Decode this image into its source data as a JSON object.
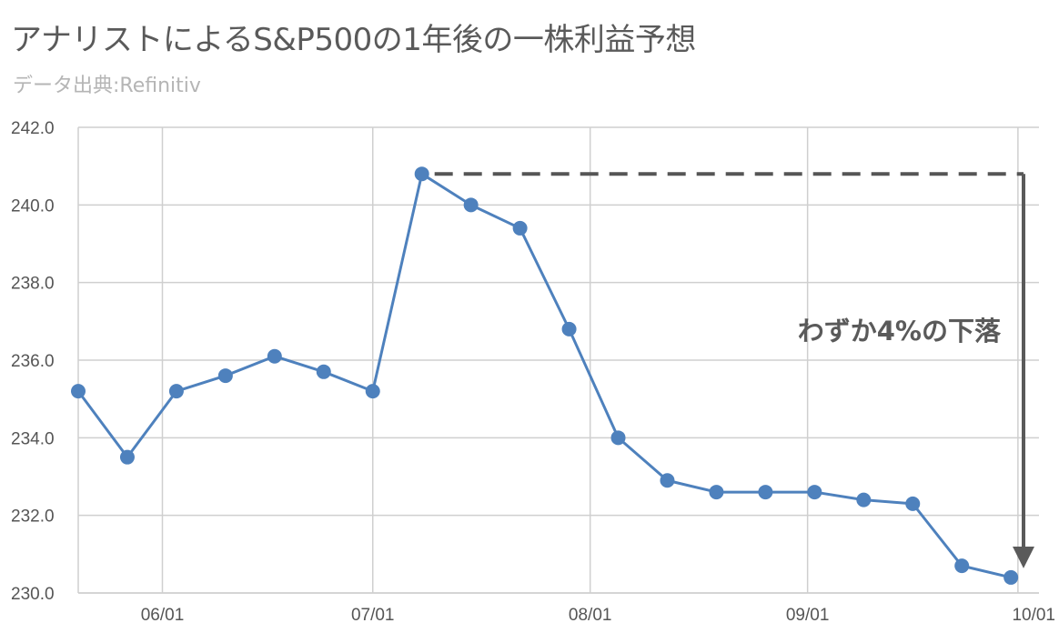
{
  "header": {
    "title": "アナリストによるS&P500の1年後の一株利益予想",
    "subtitle": "データ出典:Refinitiv"
  },
  "chart_data": {
    "type": "line",
    "title": "アナリストによるS&P500の1年後の一株利益予想",
    "subtitle": "データ出典:Refinitiv",
    "xlabel": "",
    "ylabel": "",
    "ylim": [
      230.0,
      242.0
    ],
    "yticks": [
      "230.0",
      "232.0",
      "234.0",
      "236.0",
      "238.0",
      "240.0",
      "242.0"
    ],
    "xticks": [
      {
        "label": "06/01",
        "day": 1
      },
      {
        "label": "07/01",
        "day": 31
      },
      {
        "label": "08/01",
        "day": 62
      },
      {
        "label": "09/01",
        "day": 93
      },
      {
        "label": "10/01",
        "day": 123
      }
    ],
    "grid": true,
    "series": [
      {
        "name": "",
        "color": "#4e81bd",
        "x": [
          "05/20",
          "05/27",
          "06/03",
          "06/10",
          "06/17",
          "06/24",
          "07/01",
          "07/08",
          "07/15",
          "07/22",
          "07/29",
          "08/05",
          "08/12",
          "08/19",
          "08/26",
          "09/02",
          "09/09",
          "09/16",
          "09/23",
          "09/30"
        ],
        "values": [
          235.2,
          233.5,
          235.2,
          235.6,
          236.1,
          235.7,
          235.2,
          240.8,
          240.0,
          239.4,
          236.8,
          234.0,
          232.9,
          232.6,
          232.6,
          232.6,
          232.4,
          232.3,
          230.7,
          230.4
        ]
      }
    ],
    "annotations": {
      "text": "わずか4%の下落",
      "reference_value": 240.8,
      "end_value": 230.4
    }
  }
}
